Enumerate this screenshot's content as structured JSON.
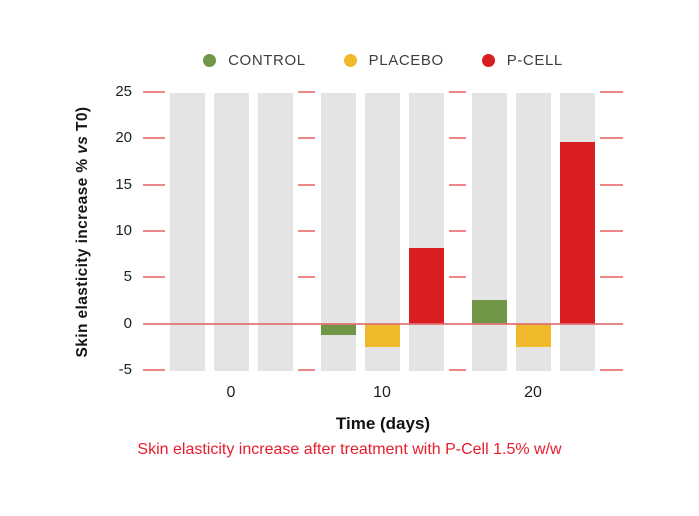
{
  "legend": {
    "items": [
      {
        "label": "CONTROL",
        "color": "#719647"
      },
      {
        "label": "PLACEBO",
        "color": "#f0b92b"
      },
      {
        "label": "P-CELL",
        "color": "#d81e20"
      }
    ]
  },
  "axes": {
    "y_label_prefix": "Skin elasticity increase % ",
    "y_label_italic": "vs",
    "y_label_suffix": " T0)",
    "x_label": "Time (days)"
  },
  "caption": {
    "text": "Skin elasticity increase after treatment with P-Cell 1.5% w/w",
    "color": "#e81c2c"
  },
  "chart_data": {
    "type": "bar",
    "title": "Skin elasticity increase after treatment with P-Cell 1.5% w/w",
    "xlabel": "Time (days)",
    "ylabel": "Skin elasticity increase % vs T0)",
    "categories": [
      "0",
      "10",
      "20"
    ],
    "series": [
      {
        "name": "CONTROL",
        "color": "#719647",
        "values": [
          0,
          -1.2,
          2.6
        ]
      },
      {
        "name": "PLACEBO",
        "color": "#f0b92b",
        "values": [
          0,
          -2.5,
          -2.5
        ]
      },
      {
        "name": "P-CELL",
        "color": "#d81e20",
        "values": [
          0,
          8.2,
          19.6
        ]
      }
    ],
    "ylim": [
      -5,
      25
    ],
    "yticks": [
      25,
      20,
      15,
      10,
      5,
      0,
      -5
    ],
    "legend_position": "top-center",
    "grid": "short salmon dash gridline segments at each tick level, visible only in gaps between bar groups and at plot edges",
    "background_column_color": "#e4e4e4",
    "gridline_color": "#ee8787",
    "zero_line_color": "#e17070"
  }
}
